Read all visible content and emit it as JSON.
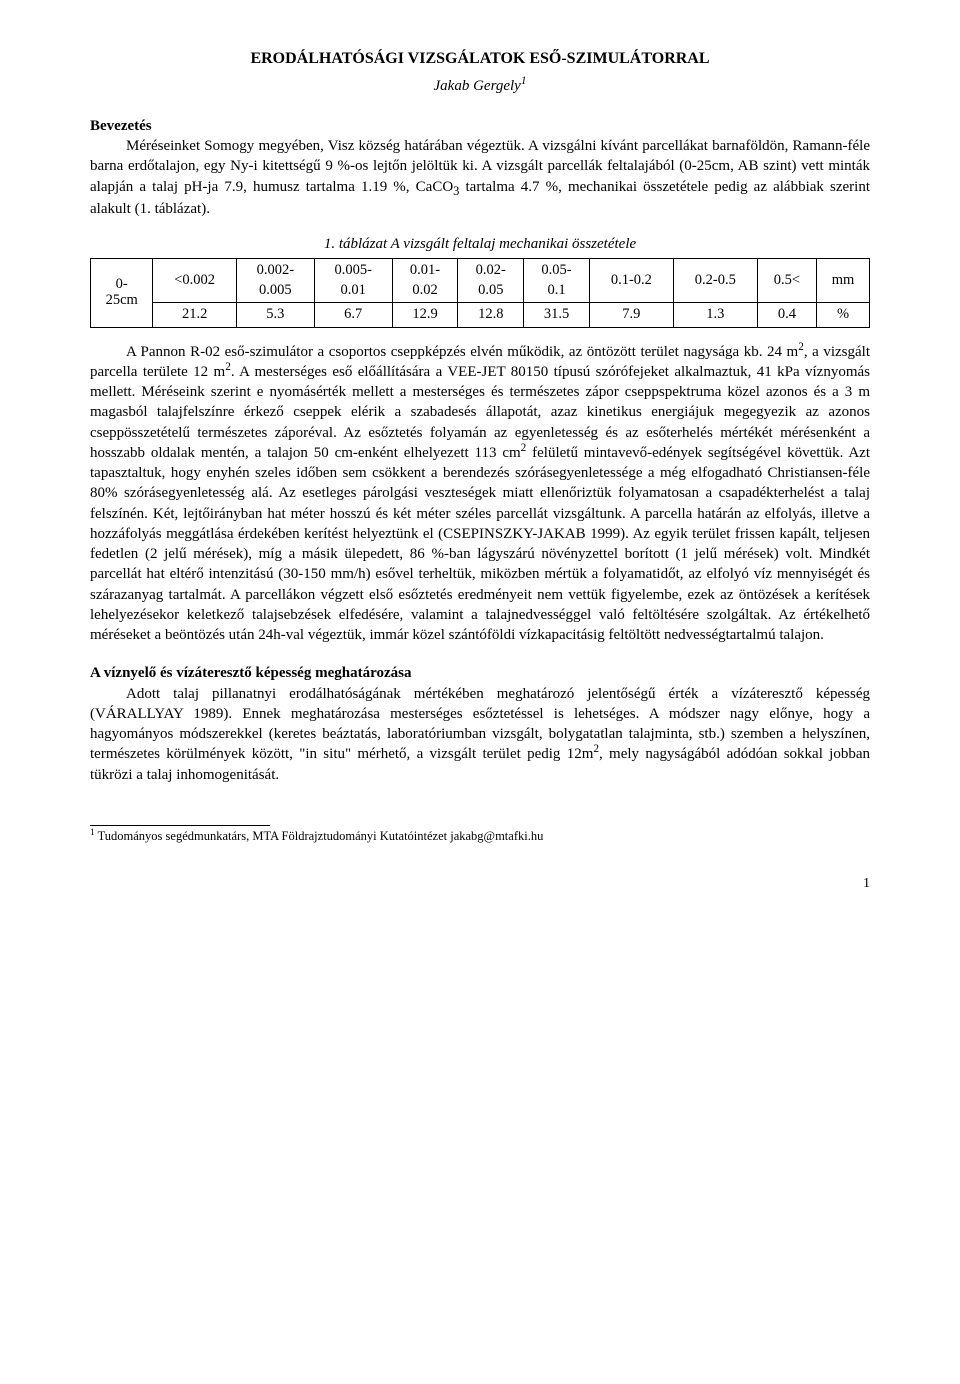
{
  "title": "ERODÁLHATÓSÁGI VIZSGÁLATOK ESŐ-SZIMULÁTORRAL",
  "author_html": "Jakab Gergely<sup>1</sup>",
  "section1_head": "Bevezetés",
  "intro_html": "Méréseinket Somogy megyében, Visz község határában végeztük. A vizsgálni kívánt parcellákat barnaföldön, Ramann-féle barna erdőtalajon, egy Ny-i kitettségű 9 %-os lejtőn jelöltük ki. A vizsgált parcellák feltalajából (0-25cm, AB szint) vett minták alapján a talaj pH-ja 7.9, humusz tartalma 1.19 %, CaCO<sub>3</sub> tartalma 4.7 %, mechanikai összetétele pedig az alábbiak szerint alakult (1. táblázat).",
  "table_caption": "1. táblázat A vizsgált feltalaj mechanikai összetétele",
  "table": {
    "rowlabel_html": "0-<br>25cm",
    "header": [
      "<0.002",
      "0.002-0.005",
      "0.005-0.01",
      "0.01-0.02",
      "0.02-0.05",
      "0.05-0.1",
      "0.1-0.2",
      "0.2-0.5",
      "0.5<",
      "mm"
    ],
    "row": [
      "21.2",
      "5.3",
      "6.7",
      "12.9",
      "12.8",
      "31.5",
      "7.9",
      "1.3",
      "0.4",
      "%"
    ]
  },
  "body_html": "A Pannon R-02 eső-szimulátor a csoportos cseppképzés elvén működik, az öntözött terület nagysága kb. 24 m<sup>2</sup>, a vizsgált parcella területe 12 m<sup>2</sup>. A mesterséges eső előállítására a VEE-JET 80150 típusú szórófejeket alkalmaztuk, 41 kPa víznyomás mellett. Méréseink szerint e nyomásérték mellett a mesterséges és természetes zápor cseppspektruma közel azonos és a 3 m magasból talajfelszínre érkező cseppek elérik a szabadesés állapotát, azaz kinetikus energiájuk megegyezik az azonos cseppösszetételű természetes záporéval. Az esőztetés folyamán az egyenletesség és az esőterhelés mértékét mérésenként a hosszabb oldalak mentén, a talajon 50 cm-enként elhelyezett 113 cm<sup>2</sup> felületű mintavevő-edények segítségével követtük. Azt tapasztaltuk, hogy enyhén szeles időben sem csökkent a berendezés szórásegyenletessége a még elfogadható Christiansen-féle 80% szórásegyenletesség alá. Az esetleges párolgási veszteségek miatt ellenőriztük folyamatosan a csapadékterhelést a talaj felszínén. Két, lejtőirányban hat méter hosszú és két méter széles parcellát vizsgáltunk. A parcella határán az elfolyás, illetve a hozzáfolyás meggátlása érdekében kerítést helyeztünk el (CSEPINSZKY-JAKAB 1999). Az egyik terület frissen kapált, teljesen fedetlen (2 jelű mérések), míg a másik ülepedett, 86 %-ban lágyszárú növényzettel borított (1 jelű mérések) volt. Mindkét parcellát hat eltérő intenzitású (30-150 mm/h) esővel terheltük, miközben mértük a folyamatidőt, az elfolyó víz mennyiségét és szárazanyag tartalmát. A parcellákon végzett első esőztetés eredményeit nem vettük figyelembe, ezek az öntözések a kerítések lehelyezésekor keletkező talajsebzések elfedésére, valamint a talajnedvességgel való feltöltésére szolgáltak. Az értékelhető méréseket a beöntözés után 24h-val végeztük, immár közel szántóföldi vízkapacitásig feltöltött nedvességtartalmú talajon.",
  "section2_head": "A víznyelő és vízáteresztő képesség meghatározása",
  "body2_html": "Adott talaj pillanatnyi erodálhatóságának mértékében meghatározó jelentőségű érték a vízáteresztő képesség (VÁRALLYAY 1989). Ennek meghatározása mesterséges esőztetéssel is lehetséges. A módszer nagy előnye, hogy a hagyományos módszerekkel (keretes beáztatás, laboratóriumban vizsgált, bolygatatlan talajminta, stb.) szemben a helyszínen, természetes körülmények között, \"in situ\" mérhető, a vizsgált terület pedig 12m<sup>2</sup>, mely nagyságából adódóan sokkal jobban tükrözi a talaj inhomogenitását.",
  "footnote_html": "<sup>1</sup> Tudományos segédmunkatárs, MTA Földrajztudományi Kutatóintézet jakabg@mtafki.hu",
  "page_number": "1"
}
